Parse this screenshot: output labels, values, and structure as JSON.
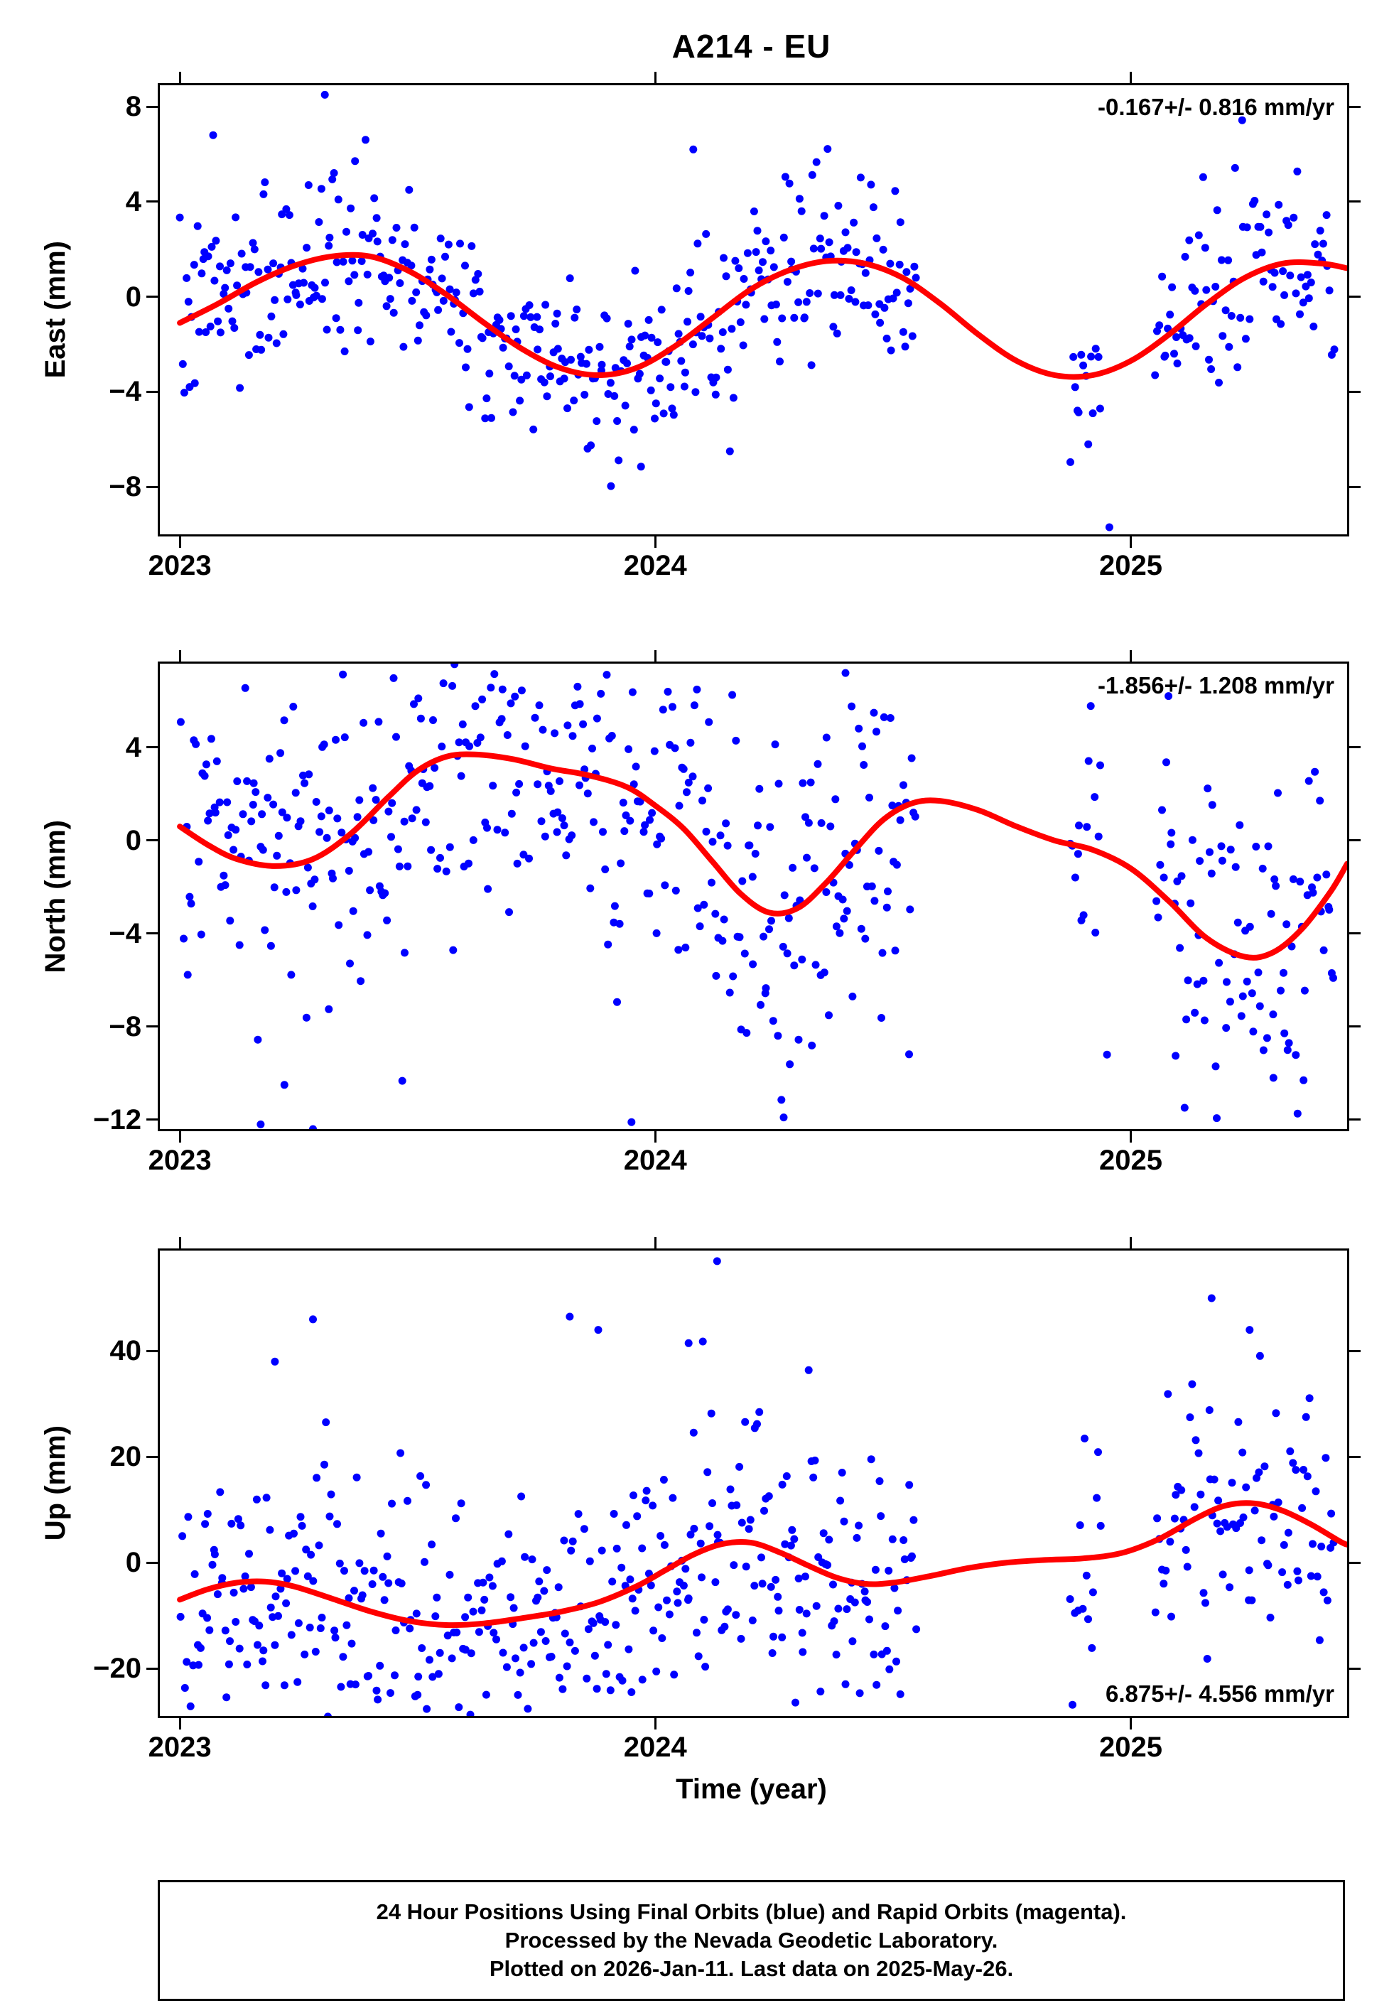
{
  "title": "A214 - EU",
  "chart_data": {
    "type": "scatter",
    "title": "A214 - EU",
    "xlabel": "Time (year)",
    "x_ticks": [
      2023,
      2024,
      2025
    ],
    "xlim": [
      2022.958,
      2025.455
    ],
    "grid": false,
    "legend": null,
    "colors": {
      "points": "#0000ff",
      "curve": "#ff0000",
      "frame": "#000000"
    },
    "panels": [
      {
        "id": "east",
        "ylabel": "East (mm)",
        "ylim": [
          -10.0,
          8.9
        ],
        "yticks": [
          -8,
          -4,
          0,
          4,
          8
        ],
        "rate_label": "-0.167+/- 0.816 mm/yr",
        "rate_label_position": "top-right",
        "curve": [
          [
            2023.0,
            -1.1
          ],
          [
            2023.08,
            -0.3
          ],
          [
            2023.16,
            0.6
          ],
          [
            2023.24,
            1.3
          ],
          [
            2023.32,
            1.7
          ],
          [
            2023.4,
            1.7
          ],
          [
            2023.48,
            1.1
          ],
          [
            2023.56,
            0.1
          ],
          [
            2023.64,
            -1.1
          ],
          [
            2023.72,
            -2.2
          ],
          [
            2023.8,
            -3.0
          ],
          [
            2023.88,
            -3.3
          ],
          [
            2023.96,
            -3.0
          ],
          [
            2024.04,
            -2.1
          ],
          [
            2024.12,
            -0.9
          ],
          [
            2024.2,
            0.3
          ],
          [
            2024.28,
            1.1
          ],
          [
            2024.36,
            1.5
          ],
          [
            2024.44,
            1.4
          ],
          [
            2024.52,
            0.8
          ],
          [
            2024.6,
            -0.3
          ],
          [
            2024.68,
            -1.6
          ],
          [
            2024.76,
            -2.7
          ],
          [
            2024.84,
            -3.3
          ],
          [
            2024.92,
            -3.3
          ],
          [
            2025.0,
            -2.7
          ],
          [
            2025.08,
            -1.6
          ],
          [
            2025.16,
            -0.3
          ],
          [
            2025.24,
            0.8
          ],
          [
            2025.32,
            1.4
          ],
          [
            2025.4,
            1.4
          ],
          [
            2025.455,
            1.2
          ]
        ],
        "scatter": {
          "seed": 7,
          "sigma": 1.9,
          "segments": [
            {
              "t0": 2023.0,
              "t1": 2024.55,
              "n": 400
            },
            {
              "t0": 2024.87,
              "t1": 2024.94,
              "n": 14
            },
            {
              "t0": 2025.05,
              "t1": 2025.43,
              "n": 88
            }
          ],
          "outliers": [
            [
              2024.955,
              -9.7
            ],
            [
              2023.97,
              -7.15
            ],
            [
              2023.305,
              8.5
            ],
            [
              2023.07,
              6.8
            ],
            [
              2024.08,
              6.2
            ]
          ]
        }
      },
      {
        "id": "north",
        "ylabel": "North (mm)",
        "ylim": [
          -12.4,
          7.6
        ],
        "yticks": [
          -12,
          -8,
          -4,
          0,
          4
        ],
        "rate_label": "-1.856+/- 1.208 mm/yr",
        "rate_label_position": "top-right",
        "curve": [
          [
            2023.0,
            0.6
          ],
          [
            2023.06,
            -0.2
          ],
          [
            2023.12,
            -0.8
          ],
          [
            2023.2,
            -1.1
          ],
          [
            2023.28,
            -0.8
          ],
          [
            2023.36,
            0.3
          ],
          [
            2023.44,
            1.9
          ],
          [
            2023.5,
            3.0
          ],
          [
            2023.56,
            3.6
          ],
          [
            2023.62,
            3.7
          ],
          [
            2023.7,
            3.5
          ],
          [
            2023.78,
            3.1
          ],
          [
            2023.86,
            2.8
          ],
          [
            2023.94,
            2.3
          ],
          [
            2024.0,
            1.5
          ],
          [
            2024.06,
            0.5
          ],
          [
            2024.12,
            -0.9
          ],
          [
            2024.18,
            -2.3
          ],
          [
            2024.24,
            -3.1
          ],
          [
            2024.3,
            -2.9
          ],
          [
            2024.36,
            -1.8
          ],
          [
            2024.42,
            -0.4
          ],
          [
            2024.48,
            0.9
          ],
          [
            2024.54,
            1.6
          ],
          [
            2024.6,
            1.7
          ],
          [
            2024.68,
            1.3
          ],
          [
            2024.76,
            0.6
          ],
          [
            2024.84,
            0.0
          ],
          [
            2024.92,
            -0.4
          ],
          [
            2025.0,
            -1.2
          ],
          [
            2025.08,
            -2.6
          ],
          [
            2025.16,
            -4.2
          ],
          [
            2025.24,
            -5.0
          ],
          [
            2025.3,
            -4.8
          ],
          [
            2025.36,
            -3.8
          ],
          [
            2025.42,
            -2.2
          ],
          [
            2025.455,
            -1.0
          ]
        ],
        "scatter": {
          "seed": 13,
          "sigma": 3.5,
          "segments": [
            {
              "t0": 2023.0,
              "t1": 2024.55,
              "n": 400
            },
            {
              "t0": 2024.87,
              "t1": 2024.94,
              "n": 14
            },
            {
              "t0": 2025.05,
              "t1": 2025.43,
              "n": 88
            }
          ],
          "outliers": [
            [
              2024.4,
              7.2
            ],
            [
              2023.17,
              -12.2
            ],
            [
              2023.28,
              -12.4
            ],
            [
              2023.95,
              -12.1
            ],
            [
              2024.27,
              -11.9
            ],
            [
              2023.22,
              -10.5
            ],
            [
              2024.95,
              -9.2
            ],
            [
              2025.3,
              -10.2
            ],
            [
              2025.33,
              -9.0
            ]
          ]
        }
      },
      {
        "id": "up",
        "ylabel": "Up (mm)",
        "ylim": [
          -29,
          59
        ],
        "yticks": [
          -20,
          0,
          20,
          40
        ],
        "rate_label": "6.875+/- 4.556 mm/yr",
        "rate_label_position": "bottom-right",
        "curve": [
          [
            2023.0,
            -7.0
          ],
          [
            2023.06,
            -5.0
          ],
          [
            2023.12,
            -3.8
          ],
          [
            2023.18,
            -3.6
          ],
          [
            2023.24,
            -4.5
          ],
          [
            2023.32,
            -6.8
          ],
          [
            2023.4,
            -9.2
          ],
          [
            2023.48,
            -11.0
          ],
          [
            2023.56,
            -11.8
          ],
          [
            2023.64,
            -11.5
          ],
          [
            2023.72,
            -10.5
          ],
          [
            2023.8,
            -9.3
          ],
          [
            2023.88,
            -7.5
          ],
          [
            2023.96,
            -4.5
          ],
          [
            2024.02,
            -1.5
          ],
          [
            2024.08,
            1.5
          ],
          [
            2024.14,
            3.5
          ],
          [
            2024.2,
            3.8
          ],
          [
            2024.26,
            2.0
          ],
          [
            2024.32,
            -0.5
          ],
          [
            2024.38,
            -2.8
          ],
          [
            2024.44,
            -4.0
          ],
          [
            2024.5,
            -3.8
          ],
          [
            2024.58,
            -2.5
          ],
          [
            2024.66,
            -1.0
          ],
          [
            2024.74,
            0.0
          ],
          [
            2024.82,
            0.5
          ],
          [
            2024.9,
            0.8
          ],
          [
            2024.98,
            1.8
          ],
          [
            2025.06,
            4.5
          ],
          [
            2025.14,
            8.5
          ],
          [
            2025.2,
            10.8
          ],
          [
            2025.26,
            11.2
          ],
          [
            2025.32,
            9.8
          ],
          [
            2025.38,
            7.2
          ],
          [
            2025.44,
            4.0
          ],
          [
            2025.455,
            3.4
          ]
        ],
        "scatter": {
          "seed": 21,
          "sigma": 12.5,
          "segments": [
            {
              "t0": 2023.0,
              "t1": 2024.55,
              "n": 400
            },
            {
              "t0": 2024.87,
              "t1": 2024.94,
              "n": 14
            },
            {
              "t0": 2025.05,
              "t1": 2025.43,
              "n": 88
            }
          ],
          "outliers": [
            [
              2024.13,
              57.0
            ],
            [
              2023.28,
              46.0
            ],
            [
              2023.82,
              46.5
            ],
            [
              2023.88,
              44.0
            ],
            [
              2025.17,
              50.0
            ],
            [
              2023.2,
              38.0
            ],
            [
              2024.07,
              41.5
            ],
            [
              2024.1,
              41.8
            ],
            [
              2025.25,
              44.0
            ],
            [
              2023.95,
              -24.5
            ],
            [
              2023.5,
              -25.0
            ],
            [
              2024.4,
              -23.0
            ]
          ]
        }
      }
    ]
  },
  "caption": {
    "line1": "24 Hour Positions Using Final Orbits (blue) and Rapid Orbits (magenta).",
    "line2": "Processed by the Nevada Geodetic Laboratory.",
    "line3": "Plotted on 2026-Jan-11. Last data on 2025-May-26."
  }
}
